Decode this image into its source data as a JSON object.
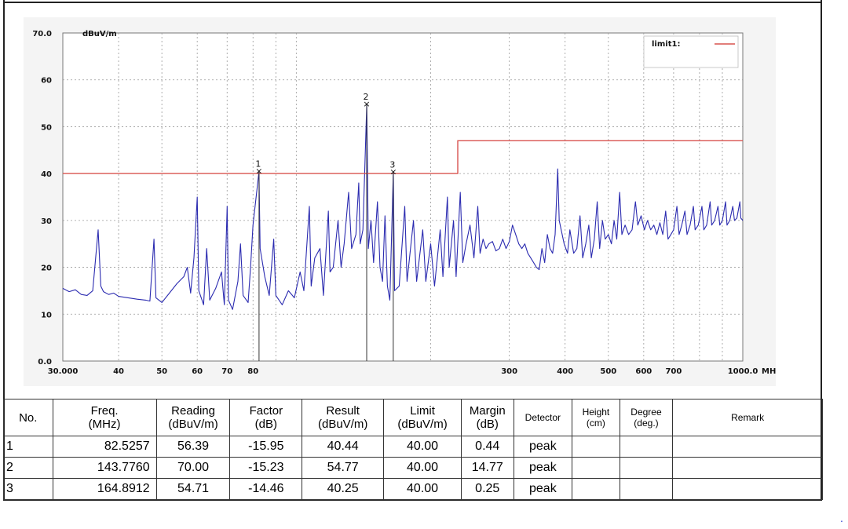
{
  "chart_data": {
    "type": "line",
    "ylabel": "dBuV/m",
    "xunit": "MHz",
    "ylim": [
      0,
      70
    ],
    "xlim": [
      30,
      1000
    ],
    "xscale": "log",
    "yticks": [
      {
        "v": 0,
        "label": "0.0"
      },
      {
        "v": 10,
        "label": "10"
      },
      {
        "v": 20,
        "label": "20"
      },
      {
        "v": 30,
        "label": "30"
      },
      {
        "v": 40,
        "label": "40"
      },
      {
        "v": 50,
        "label": "50"
      },
      {
        "v": 60,
        "label": "60"
      },
      {
        "v": 70,
        "label": "70.0"
      }
    ],
    "xticks": [
      {
        "v": 30,
        "label": "30.000"
      },
      {
        "v": 40,
        "label": "40"
      },
      {
        "v": 50,
        "label": "50"
      },
      {
        "v": 60,
        "label": "60"
      },
      {
        "v": 70,
        "label": "70"
      },
      {
        "v": 80,
        "label": "80"
      },
      {
        "v": 300,
        "label": "300"
      },
      {
        "v": 400,
        "label": "400"
      },
      {
        "v": 500,
        "label": "500"
      },
      {
        "v": 600,
        "label": "600"
      },
      {
        "v": 700,
        "label": "700"
      },
      {
        "v": 1000,
        "label": "1000.0"
      }
    ],
    "grid": true,
    "legend": {
      "label": "limit1:",
      "position": "top-right"
    },
    "limit_line": {
      "name": "limit1:",
      "color": "#d9534f",
      "points": [
        [
          30,
          40
        ],
        [
          230,
          40
        ],
        [
          230,
          47
        ],
        [
          1000,
          47
        ]
      ]
    },
    "trace_color": "#2b2bb0",
    "trace": [
      [
        30,
        15.5
      ],
      [
        31,
        14.8
      ],
      [
        32,
        15.2
      ],
      [
        33,
        14.2
      ],
      [
        34,
        14.0
      ],
      [
        35,
        15.0
      ],
      [
        36,
        28.0
      ],
      [
        36.5,
        16.0
      ],
      [
        37,
        14.8
      ],
      [
        38,
        14.2
      ],
      [
        39,
        14.5
      ],
      [
        40,
        13.8
      ],
      [
        42,
        13.5
      ],
      [
        44,
        13.2
      ],
      [
        46,
        13.0
      ],
      [
        47,
        12.8
      ],
      [
        48,
        26.0
      ],
      [
        48.5,
        13.5
      ],
      [
        50,
        12.5
      ],
      [
        52,
        14.5
      ],
      [
        54,
        16.5
      ],
      [
        56,
        18.0
      ],
      [
        57,
        20.0
      ],
      [
        58,
        14.5
      ],
      [
        59,
        22.0
      ],
      [
        60,
        35.0
      ],
      [
        60.5,
        15.0
      ],
      [
        62,
        12.0
      ],
      [
        63,
        24.0
      ],
      [
        64,
        13.0
      ],
      [
        66,
        15.5
      ],
      [
        68,
        19.0
      ],
      [
        69,
        12.0
      ],
      [
        70,
        33.0
      ],
      [
        70.5,
        13.0
      ],
      [
        72,
        11.0
      ],
      [
        74,
        17.0
      ],
      [
        75,
        25.0
      ],
      [
        76,
        14.0
      ],
      [
        78,
        12.5
      ],
      [
        79,
        20.0
      ],
      [
        80,
        29.0
      ],
      [
        82.5,
        40.4
      ],
      [
        83,
        24.0
      ],
      [
        85,
        18.0
      ],
      [
        87,
        14.0
      ],
      [
        89,
        26.0
      ],
      [
        90,
        14.0
      ],
      [
        93,
        12.0
      ],
      [
        96,
        15.0
      ],
      [
        99,
        13.5
      ],
      [
        102,
        19.0
      ],
      [
        104,
        15.0
      ],
      [
        107,
        33.0
      ],
      [
        108,
        16.0
      ],
      [
        110,
        22.0
      ],
      [
        113,
        24.0
      ],
      [
        115,
        14.0
      ],
      [
        118,
        32.0
      ],
      [
        119,
        19.0
      ],
      [
        121,
        20.0
      ],
      [
        124,
        30.0
      ],
      [
        126,
        20.0
      ],
      [
        128,
        25.0
      ],
      [
        131,
        36.0
      ],
      [
        133,
        24.0
      ],
      [
        136,
        27.0
      ],
      [
        138,
        38.0
      ],
      [
        139,
        25.0
      ],
      [
        141,
        28.0
      ],
      [
        143.8,
        54.8
      ],
      [
        145,
        24.0
      ],
      [
        147,
        30.0
      ],
      [
        149,
        21.0
      ],
      [
        152,
        34.0
      ],
      [
        154,
        20.0
      ],
      [
        156,
        17.0
      ],
      [
        158,
        31.0
      ],
      [
        160,
        16.0
      ],
      [
        162,
        13.0
      ],
      [
        164.9,
        40.3
      ],
      [
        166,
        15.0
      ],
      [
        170,
        16.0
      ],
      [
        175,
        33.0
      ],
      [
        177,
        17.0
      ],
      [
        183,
        30.0
      ],
      [
        186,
        17.0
      ],
      [
        192,
        28.0
      ],
      [
        195,
        17.0
      ],
      [
        200,
        25.0
      ],
      [
        204,
        16.0
      ],
      [
        210,
        28.0
      ],
      [
        213,
        18.0
      ],
      [
        218,
        35.0
      ],
      [
        220,
        20.0
      ],
      [
        225,
        30.0
      ],
      [
        228,
        18.0
      ],
      [
        233,
        36.0
      ],
      [
        236,
        21.0
      ],
      [
        240,
        25.0
      ],
      [
        245,
        29.0
      ],
      [
        250,
        22.0
      ],
      [
        255,
        33.0
      ],
      [
        258,
        23.0
      ],
      [
        262,
        26.0
      ],
      [
        266,
        24.0
      ],
      [
        270,
        25.0
      ],
      [
        275,
        25.5
      ],
      [
        280,
        23.5
      ],
      [
        285,
        24.0
      ],
      [
        290,
        26.0
      ],
      [
        295,
        24.0
      ],
      [
        300,
        25.5
      ],
      [
        305,
        29.0
      ],
      [
        310,
        27.0
      ],
      [
        315,
        25.0
      ],
      [
        320,
        24.0
      ],
      [
        325,
        25.0
      ],
      [
        330,
        23.0
      ],
      [
        335,
        22.0
      ],
      [
        340,
        21.0
      ],
      [
        345,
        20.0
      ],
      [
        350,
        19.5
      ],
      [
        355,
        24.0
      ],
      [
        360,
        21.0
      ],
      [
        365,
        27.0
      ],
      [
        370,
        24.0
      ],
      [
        375,
        23.0
      ],
      [
        380,
        27.0
      ],
      [
        385,
        41.0
      ],
      [
        388,
        30.0
      ],
      [
        392,
        28.0
      ],
      [
        398,
        25.0
      ],
      [
        405,
        23.0
      ],
      [
        410,
        28.0
      ],
      [
        418,
        23.0
      ],
      [
        425,
        24.0
      ],
      [
        432,
        31.0
      ],
      [
        438,
        22.0
      ],
      [
        445,
        25.0
      ],
      [
        452,
        29.0
      ],
      [
        458,
        22.0
      ],
      [
        465,
        26.0
      ],
      [
        472,
        34.0
      ],
      [
        478,
        24.0
      ],
      [
        485,
        30.0
      ],
      [
        492,
        26.0
      ],
      [
        500,
        27.0
      ],
      [
        508,
        25.0
      ],
      [
        515,
        30.0
      ],
      [
        522,
        26.0
      ],
      [
        530,
        36.0
      ],
      [
        536,
        27.0
      ],
      [
        545,
        29.0
      ],
      [
        555,
        27.0
      ],
      [
        565,
        28.0
      ],
      [
        575,
        34.0
      ],
      [
        582,
        29.0
      ],
      [
        592,
        31.0
      ],
      [
        602,
        28.0
      ],
      [
        612,
        30.0
      ],
      [
        622,
        28.0
      ],
      [
        632,
        29.0
      ],
      [
        642,
        27.0
      ],
      [
        652,
        29.5
      ],
      [
        662,
        27.0
      ],
      [
        672,
        32.0
      ],
      [
        680,
        26.0
      ],
      [
        690,
        27.0
      ],
      [
        700,
        28.0
      ],
      [
        712,
        33.0
      ],
      [
        720,
        27.0
      ],
      [
        730,
        29.0
      ],
      [
        742,
        32.0
      ],
      [
        750,
        27.0
      ],
      [
        762,
        29.0
      ],
      [
        775,
        33.0
      ],
      [
        782,
        28.0
      ],
      [
        795,
        29.0
      ],
      [
        810,
        33.0
      ],
      [
        818,
        28.0
      ],
      [
        830,
        29.0
      ],
      [
        845,
        34.0
      ],
      [
        852,
        29.0
      ],
      [
        865,
        30.0
      ],
      [
        880,
        33.0
      ],
      [
        888,
        29.0
      ],
      [
        900,
        30.0
      ],
      [
        915,
        34.0
      ],
      [
        922,
        29.0
      ],
      [
        935,
        30.0
      ],
      [
        950,
        33.0
      ],
      [
        958,
        30.0
      ],
      [
        970,
        30.5
      ],
      [
        985,
        34.0
      ],
      [
        990,
        30.5
      ],
      [
        1000,
        30.0
      ]
    ],
    "markers": [
      {
        "label": "1",
        "x": 82.5257,
        "y": 40.44
      },
      {
        "label": "2",
        "x": 143.776,
        "y": 54.77
      },
      {
        "label": "3",
        "x": 164.8912,
        "y": 40.25
      }
    ]
  },
  "table": {
    "headers": [
      {
        "top": "No.",
        "bottom": ""
      },
      {
        "top": "Freq.",
        "bottom": "(MHz)"
      },
      {
        "top": "Reading",
        "bottom": "(dBuV/m)"
      },
      {
        "top": "Factor",
        "bottom": "(dB)"
      },
      {
        "top": "Result",
        "bottom": "(dBuV/m)"
      },
      {
        "top": "Limit",
        "bottom": "(dBuV/m)"
      },
      {
        "top": "Margin",
        "bottom": "(dB)"
      },
      {
        "top": "Detector",
        "bottom": ""
      },
      {
        "top": "Height",
        "bottom": "(cm)"
      },
      {
        "top": "Degree",
        "bottom": "(deg.)"
      },
      {
        "top": "Remark",
        "bottom": ""
      }
    ],
    "rows": [
      [
        "1",
        "82.5257",
        "56.39",
        "-15.95",
        "40.44",
        "40.00",
        "0.44",
        "peak",
        "",
        "",
        ""
      ],
      [
        "2",
        "143.7760",
        "70.00",
        "-15.23",
        "54.77",
        "40.00",
        "14.77",
        "peak",
        "",
        "",
        ""
      ],
      [
        "3",
        "164.8912",
        "54.71",
        "-14.46",
        "40.25",
        "40.00",
        "0.25",
        "peak",
        "",
        "",
        ""
      ]
    ]
  },
  "stray_mark": "."
}
